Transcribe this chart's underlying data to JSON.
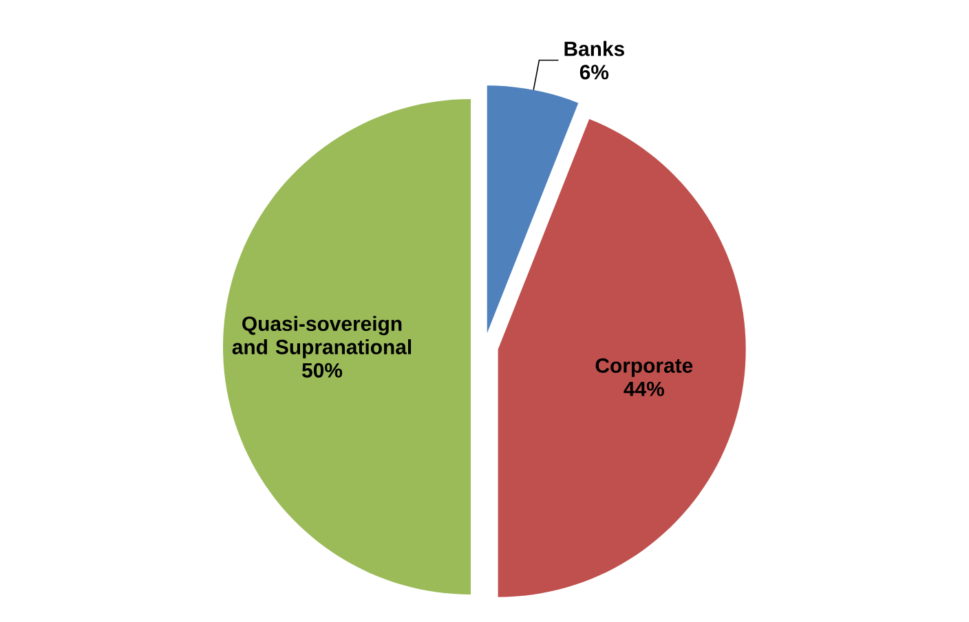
{
  "chart_data": {
    "type": "pie",
    "categories": [
      "Banks",
      "Corporate",
      "Quasi-sovereign and Supranational"
    ],
    "values": [
      6,
      44,
      50
    ],
    "colors": [
      "#4f81bd",
      "#c0504d",
      "#9bbb59"
    ],
    "value_labels": [
      "6%",
      "44%",
      "50%"
    ]
  }
}
